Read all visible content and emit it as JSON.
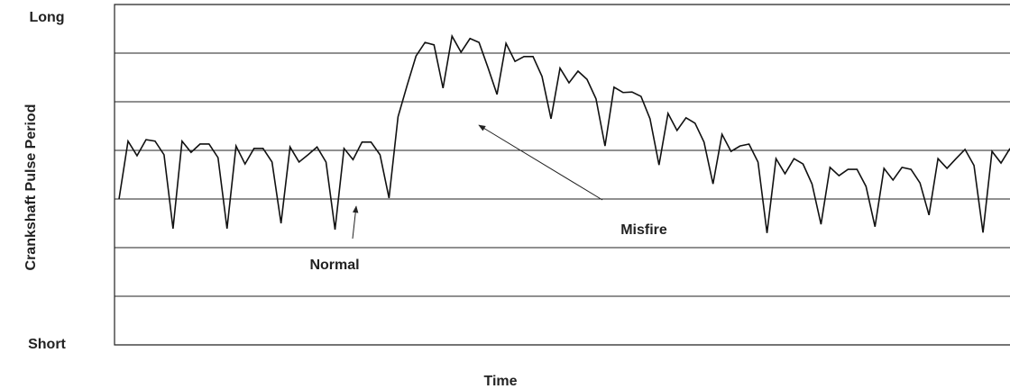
{
  "chart_data": {
    "type": "line",
    "y_label": "Crankshaft Pulse Period",
    "x_label": "Time",
    "annotations": [
      "Normal",
      "Misfire"
    ],
    "ylim": [
      0,
      7
    ],
    "yticks": [
      {
        "value": 0,
        "label": "Short"
      },
      {
        "value": 7,
        "label": "Long"
      }
    ],
    "ygrid": [
      1,
      2,
      3,
      4,
      5,
      6
    ],
    "color": "#111111",
    "values": [
      3.0,
      4.19,
      3.89,
      4.22,
      4.19,
      3.91,
      2.39,
      4.19,
      3.96,
      4.13,
      4.13,
      3.85,
      2.39,
      4.09,
      3.72,
      4.04,
      4.04,
      3.76,
      2.5,
      4.07,
      3.76,
      3.91,
      4.07,
      3.76,
      2.37,
      4.04,
      3.81,
      4.17,
      4.17,
      3.91,
      3.02,
      4.69,
      5.33,
      5.94,
      6.22,
      6.17,
      5.28,
      6.35,
      6.02,
      6.3,
      6.22,
      5.7,
      5.15,
      6.2,
      5.83,
      5.93,
      5.93,
      5.52,
      4.65,
      5.69,
      5.39,
      5.63,
      5.46,
      5.06,
      4.09,
      5.3,
      5.19,
      5.2,
      5.11,
      4.65,
      3.7,
      4.76,
      4.41,
      4.67,
      4.56,
      4.17,
      3.31,
      4.33,
      3.98,
      4.09,
      4.13,
      3.76,
      2.3,
      3.83,
      3.52,
      3.83,
      3.72,
      3.31,
      2.48,
      3.65,
      3.48,
      3.61,
      3.61,
      3.26,
      2.43,
      3.63,
      3.39,
      3.65,
      3.61,
      3.33,
      2.67,
      3.83,
      3.63,
      3.83,
      4.02,
      3.69,
      2.31,
      3.98,
      3.74,
      4.04
    ]
  }
}
